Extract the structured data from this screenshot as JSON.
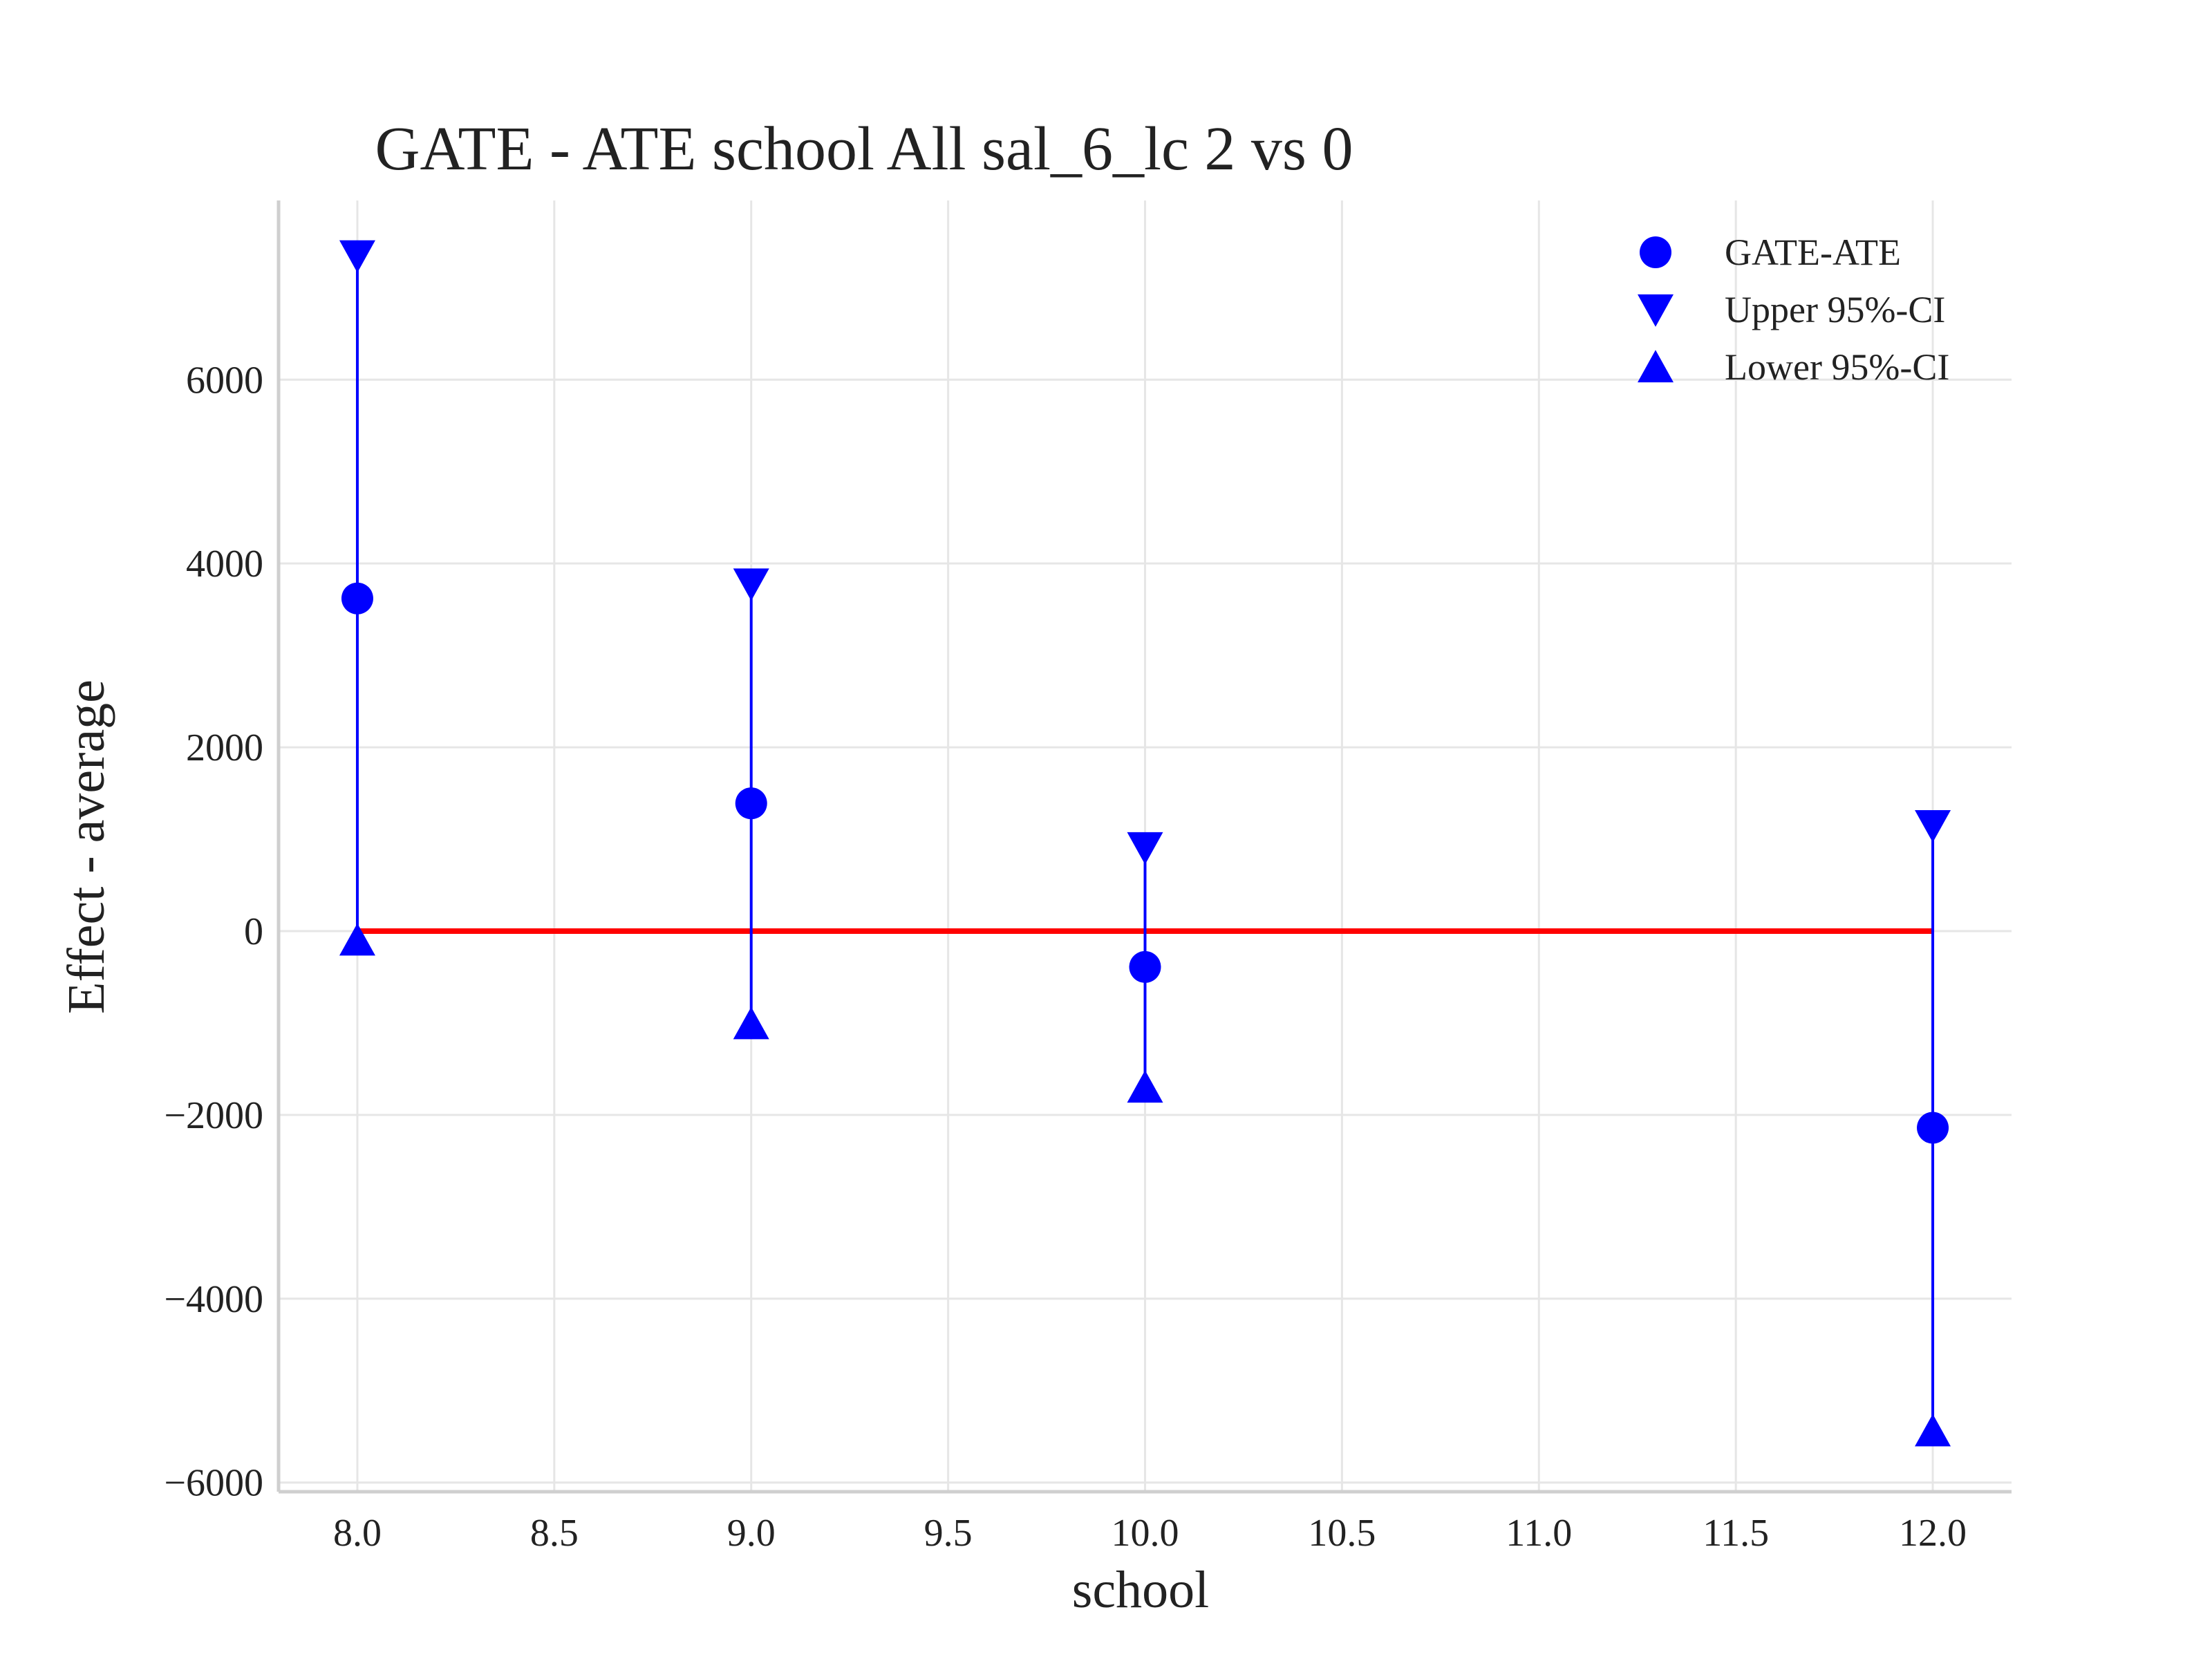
{
  "chart_data": {
    "type": "scatter",
    "title": "GATE - ATE school All sal_6_lc  2 vs 0",
    "xlabel": "school",
    "ylabel": "Effect - average",
    "xlim": [
      7.8,
      12.2
    ],
    "ylim": [
      -6100,
      7950
    ],
    "xticks": [
      8.0,
      8.5,
      9.0,
      9.5,
      10.0,
      10.5,
      11.0,
      11.5,
      12.0
    ],
    "xtick_labels": [
      "8.0",
      "8.5",
      "9.0",
      "9.5",
      "10.0",
      "10.5",
      "11.0",
      "11.5",
      "12.0"
    ],
    "yticks": [
      -6000,
      -4000,
      -2000,
      0,
      2000,
      4000,
      6000
    ],
    "ytick_labels": [
      "−6000",
      "−4000",
      "−2000",
      "0",
      "2000",
      "4000",
      "6000"
    ],
    "grid": true,
    "legend_position": "top-right",
    "x": [
      8.0,
      9.0,
      10.0,
      12.0
    ],
    "series": [
      {
        "name": "GATE-ATE",
        "marker": "circle",
        "values": [
          3620,
          1390,
          -390,
          -2140
        ]
      },
      {
        "name": "Upper 95%-CI",
        "marker": "triangle-down",
        "values": [
          7350,
          3780,
          910,
          1150
        ]
      },
      {
        "name": "Lower 95%-CI",
        "marker": "triangle-up",
        "values": [
          -100,
          -1010,
          -1700,
          -5440
        ]
      }
    ],
    "reference_line": {
      "y": 0,
      "x_range": [
        8.0,
        12.0
      ],
      "color": "#ff0000"
    },
    "colors": {
      "points": "#0000ff",
      "reference": "#ff0000"
    }
  }
}
